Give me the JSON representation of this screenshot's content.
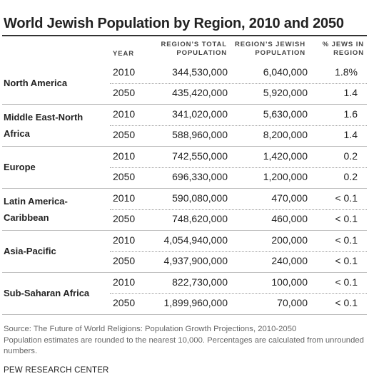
{
  "title": "World Jewish Population by Region, 2010 and 2050",
  "headers": {
    "year": "YEAR",
    "total_line1": "REGION’S TOTAL",
    "total_line2": "POPULATION",
    "jewish_line1": "REGION’S JEWISH",
    "jewish_line2": "POPULATION",
    "pct_line1": "% JEWS IN",
    "pct_line2": "REGION"
  },
  "regions": [
    {
      "label_line1": "North America",
      "label_line2": "",
      "rows": [
        {
          "year": "2010",
          "total": "344,530,000",
          "jewish": "6,040,000",
          "pct": "1.8%"
        },
        {
          "year": "2050",
          "total": "435,420,000",
          "jewish": "5,920,000",
          "pct": "1.4"
        }
      ]
    },
    {
      "label_line1": "Middle East-North",
      "label_line2": "Africa",
      "rows": [
        {
          "year": "2010",
          "total": "341,020,000",
          "jewish": "5,630,000",
          "pct": "1.6"
        },
        {
          "year": "2050",
          "total": "588,960,000",
          "jewish": "8,200,000",
          "pct": "1.4"
        }
      ]
    },
    {
      "label_line1": "Europe",
      "label_line2": "",
      "rows": [
        {
          "year": "2010",
          "total": "742,550,000",
          "jewish": "1,420,000",
          "pct": "0.2"
        },
        {
          "year": "2050",
          "total": "696,330,000",
          "jewish": "1,200,000",
          "pct": "0.2"
        }
      ]
    },
    {
      "label_line1": "Latin America-",
      "label_line2": "Caribbean",
      "rows": [
        {
          "year": "2010",
          "total": "590,080,000",
          "jewish": "470,000",
          "pct": "< 0.1"
        },
        {
          "year": "2050",
          "total": "748,620,000",
          "jewish": "460,000",
          "pct": "< 0.1"
        }
      ]
    },
    {
      "label_line1": "Asia-Pacific",
      "label_line2": "",
      "rows": [
        {
          "year": "2010",
          "total": "4,054,940,000",
          "jewish": "200,000",
          "pct": "< 0.1"
        },
        {
          "year": "2050",
          "total": "4,937,900,000",
          "jewish": "240,000",
          "pct": "< 0.1"
        }
      ]
    },
    {
      "label_line1": "Sub-Saharan Africa",
      "label_line2": "",
      "rows": [
        {
          "year": "2010",
          "total": "822,730,000",
          "jewish": "100,000",
          "pct": "< 0.1"
        },
        {
          "year": "2050",
          "total": "1,899,960,000",
          "jewish": "70,000",
          "pct": "< 0.1"
        }
      ]
    }
  ],
  "source_line1": "Source: The Future of World Religions: Population Growth Projections, 2010-2050",
  "source_line2": "Population estimates are rounded to the nearest 10,000. Percentages are calculated from unrounded numbers.",
  "credit": "PEW RESEARCH CENTER"
}
